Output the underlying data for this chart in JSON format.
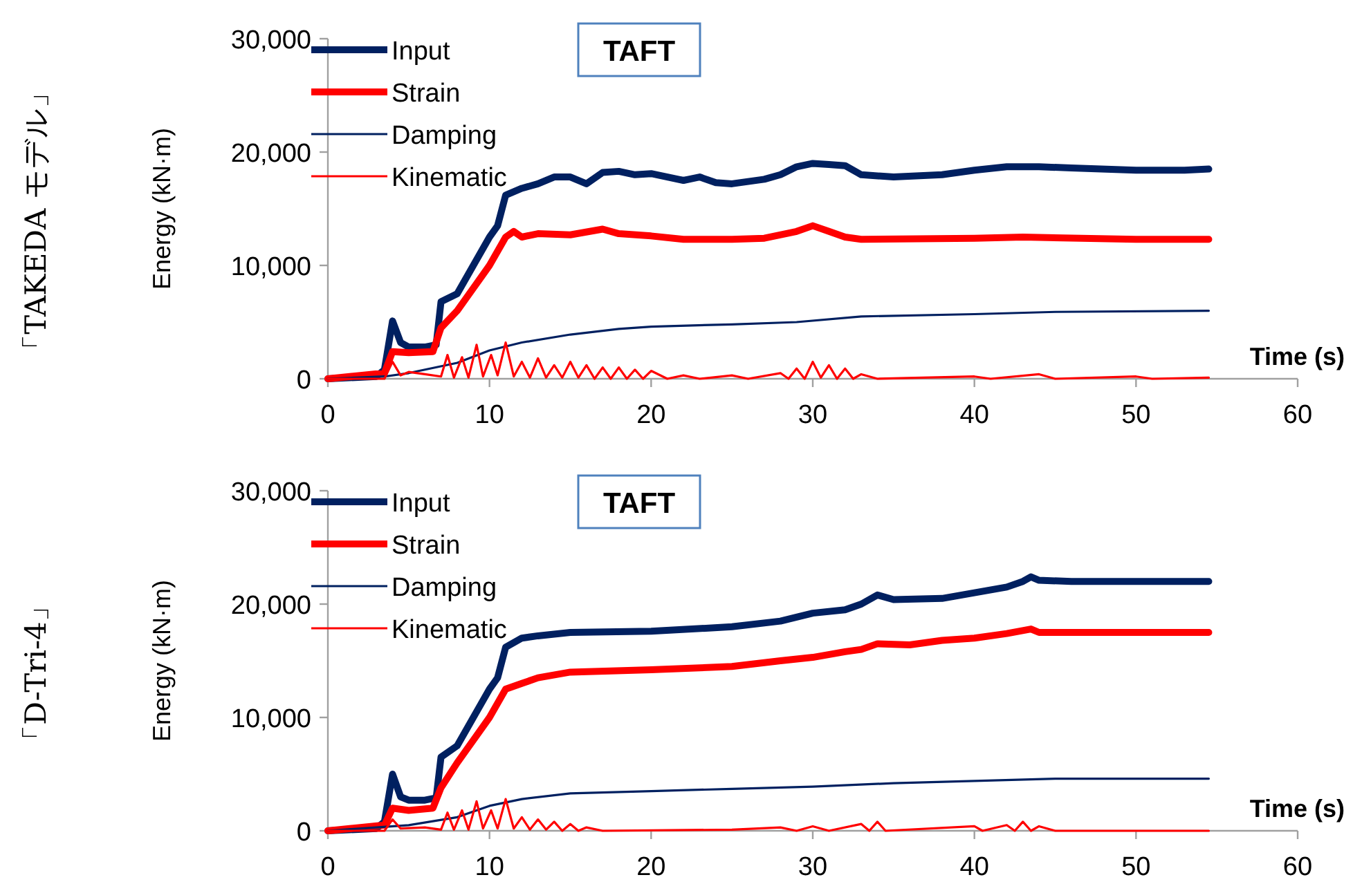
{
  "chart_data": [
    {
      "type": "line",
      "title": "TAFT",
      "annotations": [
        "「TAKEDA モデル」"
      ],
      "xlabel": "Time (s)",
      "ylabel": "Energy (kN·m)",
      "xlim": [
        0,
        60
      ],
      "xticks": [
        0,
        10,
        20,
        30,
        40,
        50,
        60
      ],
      "ylim": [
        0,
        30000
      ],
      "yticks": [
        {
          "value": 0,
          "label": "0"
        },
        {
          "value": 10000,
          "label": "10,000"
        },
        {
          "value": 20000,
          "label": "20,000"
        },
        {
          "value": 30000,
          "label": "30,000"
        }
      ],
      "legend": "top left",
      "grid": false,
      "marker": "none",
      "line_style": "solid",
      "series": [
        {
          "name": "Input",
          "color": "#002060",
          "x": [
            0,
            3,
            3.5,
            4,
            4.5,
            5,
            6,
            6.7,
            7,
            8,
            9,
            10,
            10.5,
            11,
            12,
            13,
            14,
            15,
            16,
            17,
            18,
            19,
            20,
            22,
            23,
            24,
            25,
            27,
            28,
            29,
            30,
            31,
            32,
            33,
            35,
            38,
            40,
            42,
            44,
            46,
            50,
            53,
            54.5
          ],
          "values": [
            0,
            200,
            800,
            5100,
            3200,
            2800,
            2800,
            3000,
            6800,
            7500,
            10000,
            12500,
            13500,
            16200,
            16800,
            17200,
            17800,
            17800,
            17200,
            18200,
            18300,
            18000,
            18100,
            17500,
            17800,
            17300,
            17200,
            17600,
            18000,
            18700,
            19000,
            18900,
            18800,
            18000,
            17800,
            18000,
            18400,
            18700,
            18700,
            18600,
            18400,
            18400,
            18500
          ]
        },
        {
          "name": "Strain",
          "color": "#ff0000",
          "x": [
            0,
            3.5,
            4,
            5,
            6.5,
            7,
            8,
            9,
            10,
            11,
            11.5,
            12,
            13,
            15,
            17,
            18,
            20,
            22,
            25,
            27,
            29,
            30,
            31,
            32,
            33,
            40,
            43,
            50,
            54.5
          ],
          "values": [
            0,
            500,
            2400,
            2300,
            2400,
            4500,
            6000,
            8000,
            10000,
            12500,
            13000,
            12500,
            12800,
            12700,
            13200,
            12800,
            12600,
            12300,
            12300,
            12400,
            13000,
            13500,
            13000,
            12500,
            12300,
            12400,
            12500,
            12300,
            12300
          ]
        },
        {
          "name": "Damping",
          "color": "#002060",
          "x": [
            0,
            3.5,
            5,
            8,
            10,
            12,
            15,
            18,
            20,
            25,
            29,
            33,
            40,
            45,
            54.5
          ],
          "values": [
            0,
            200,
            500,
            1400,
            2500,
            3200,
            3900,
            4400,
            4600,
            4800,
            5000,
            5500,
            5700,
            5900,
            6000
          ]
        },
        {
          "name": "Kinematic",
          "color": "#ff0000",
          "x": [
            0,
            3.5,
            4,
            4.5,
            5,
            6,
            7,
            7.4,
            7.8,
            8.3,
            8.7,
            9.2,
            9.6,
            10.1,
            10.5,
            11,
            11.5,
            12,
            12.5,
            13,
            13.5,
            14,
            14.5,
            15,
            15.5,
            16,
            16.5,
            17,
            17.5,
            18,
            18.5,
            19,
            19.5,
            20,
            21,
            22,
            23,
            25,
            26,
            28,
            28.5,
            29,
            29.5,
            30,
            30.5,
            31,
            31.5,
            32,
            32.5,
            33,
            34,
            40,
            41,
            44,
            45,
            50,
            51,
            54.5
          ],
          "values": [
            0,
            0,
            1500,
            300,
            600,
            400,
            200,
            2100,
            100,
            1900,
            100,
            3000,
            200,
            2100,
            300,
            3200,
            200,
            1500,
            100,
            1800,
            100,
            1200,
            100,
            1500,
            100,
            1200,
            0,
            1000,
            0,
            1000,
            0,
            800,
            0,
            700,
            0,
            300,
            0,
            300,
            0,
            500,
            0,
            900,
            0,
            1500,
            100,
            1200,
            0,
            900,
            0,
            400,
            0,
            200,
            0,
            400,
            0,
            200,
            0,
            100
          ]
        }
      ]
    },
    {
      "type": "line",
      "title": "TAFT",
      "annotations": [
        "「D-Tri-4」"
      ],
      "xlabel": "Time (s)",
      "ylabel": "Energy (kN·m)",
      "xlim": [
        0,
        60
      ],
      "xticks": [
        0,
        10,
        20,
        30,
        40,
        50,
        60
      ],
      "ylim": [
        0,
        30000
      ],
      "yticks": [
        {
          "value": 0,
          "label": "0"
        },
        {
          "value": 10000,
          "label": "10,000"
        },
        {
          "value": 20000,
          "label": "20,000"
        },
        {
          "value": 30000,
          "label": "30,000"
        }
      ],
      "legend": "top left",
      "grid": false,
      "marker": "none",
      "line_style": "solid",
      "series": [
        {
          "name": "Input",
          "color": "#002060",
          "x": [
            0,
            3,
            3.5,
            4,
            4.5,
            5,
            6,
            6.7,
            7,
            8,
            9,
            10,
            10.5,
            11,
            12,
            13,
            15,
            20,
            25,
            28,
            30,
            32,
            33,
            34,
            35,
            38,
            40,
            42,
            43,
            43.5,
            44,
            46,
            54.5
          ],
          "values": [
            0,
            200,
            800,
            5000,
            3000,
            2700,
            2700,
            2900,
            6500,
            7500,
            10000,
            12500,
            13500,
            16200,
            17000,
            17200,
            17500,
            17600,
            18000,
            18500,
            19200,
            19500,
            20000,
            20800,
            20400,
            20500,
            21000,
            21500,
            22000,
            22400,
            22100,
            22000,
            22000
          ]
        },
        {
          "name": "Strain",
          "color": "#ff0000",
          "x": [
            0,
            3.5,
            4,
            5,
            6.5,
            7,
            8,
            9,
            10,
            11,
            12,
            13,
            15,
            20,
            25,
            28,
            30,
            32,
            33,
            34,
            36,
            38,
            40,
            42,
            43.5,
            44,
            46,
            54.5
          ],
          "values": [
            0,
            500,
            2000,
            1800,
            2000,
            3800,
            6000,
            8000,
            10000,
            12500,
            13000,
            13500,
            14000,
            14200,
            14500,
            15000,
            15300,
            15800,
            16000,
            16500,
            16400,
            16800,
            17000,
            17400,
            17800,
            17500,
            17500,
            17500
          ]
        },
        {
          "name": "Damping",
          "color": "#002060",
          "x": [
            0,
            5,
            8,
            10,
            12,
            15,
            20,
            25,
            30,
            35,
            40,
            45,
            54.5
          ],
          "values": [
            0,
            500,
            1200,
            2200,
            2800,
            3300,
            3500,
            3700,
            3900,
            4200,
            4400,
            4600,
            4600
          ]
        },
        {
          "name": "Kinematic",
          "color": "#ff0000",
          "x": [
            0,
            3.5,
            4,
            4.5,
            6,
            7,
            7.4,
            7.8,
            8.3,
            8.7,
            9.2,
            9.6,
            10.1,
            10.5,
            11,
            11.5,
            12,
            12.5,
            13,
            13.5,
            14,
            14.5,
            15,
            15.5,
            16,
            17,
            25,
            28,
            29,
            30,
            31,
            33,
            33.5,
            34,
            34.5,
            40,
            40.5,
            42,
            42.5,
            43,
            43.5,
            44,
            45,
            54.5
          ],
          "values": [
            0,
            0,
            1000,
            200,
            300,
            100,
            1600,
            100,
            1800,
            100,
            2600,
            200,
            1800,
            200,
            2800,
            200,
            1200,
            100,
            1000,
            100,
            800,
            0,
            600,
            0,
            300,
            0,
            100,
            300,
            0,
            400,
            0,
            600,
            0,
            800,
            0,
            400,
            0,
            500,
            0,
            800,
            0,
            400,
            0,
            0
          ]
        }
      ]
    }
  ]
}
